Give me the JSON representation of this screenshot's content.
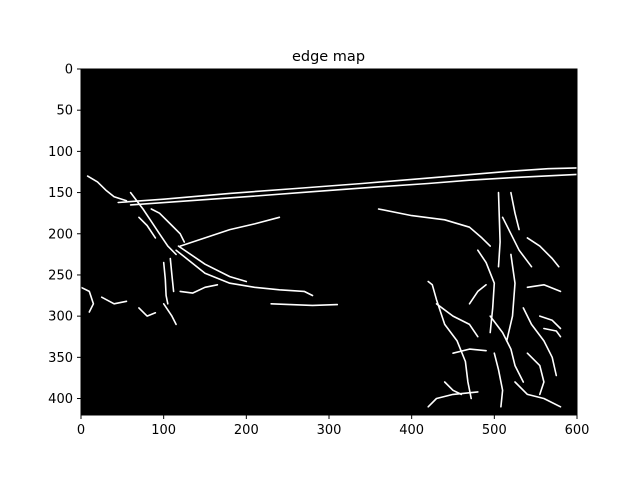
{
  "chart_data": {
    "type": "image",
    "title": "edge map",
    "xlabel": "",
    "ylabel": "",
    "xlim": [
      0,
      600
    ],
    "ylim": [
      420,
      0
    ],
    "x_ticks": [
      0,
      100,
      200,
      300,
      400,
      500,
      600
    ],
    "y_ticks": [
      0,
      50,
      100,
      150,
      200,
      250,
      300,
      350,
      400
    ],
    "grid": false,
    "legend": "none",
    "colors": {
      "background": "#000000",
      "edges": "#ffffff",
      "axes": "#000000"
    },
    "edge_paths": [
      [
        [
          45,
          162
        ],
        [
          100,
          158
        ],
        [
          180,
          151
        ],
        [
          260,
          145
        ],
        [
          340,
          139
        ],
        [
          400,
          134
        ],
        [
          460,
          129
        ],
        [
          520,
          124
        ],
        [
          565,
          121
        ],
        [
          600,
          120
        ]
      ],
      [
        [
          60,
          165
        ],
        [
          130,
          160
        ],
        [
          200,
          155
        ],
        [
          280,
          149
        ],
        [
          360,
          143
        ],
        [
          420,
          139
        ],
        [
          470,
          135
        ],
        [
          520,
          132
        ],
        [
          560,
          130
        ],
        [
          600,
          128
        ]
      ],
      [
        [
          8,
          130
        ],
        [
          20,
          137
        ],
        [
          30,
          147
        ],
        [
          40,
          155
        ],
        [
          55,
          160
        ]
      ],
      [
        [
          60,
          150
        ],
        [
          75,
          170
        ],
        [
          85,
          185
        ],
        [
          95,
          200
        ],
        [
          105,
          215
        ],
        [
          115,
          225
        ]
      ],
      [
        [
          85,
          170
        ],
        [
          95,
          175
        ],
        [
          110,
          190
        ],
        [
          120,
          200
        ],
        [
          125,
          210
        ]
      ],
      [
        [
          70,
          180
        ],
        [
          80,
          190
        ],
        [
          90,
          205
        ]
      ],
      [
        [
          115,
          220
        ],
        [
          125,
          228
        ],
        [
          150,
          248
        ],
        [
          180,
          260
        ],
        [
          210,
          265
        ],
        [
          240,
          268
        ],
        [
          270,
          270
        ],
        [
          280,
          275
        ]
      ],
      [
        [
          118,
          215
        ],
        [
          150,
          237
        ],
        [
          180,
          252
        ],
        [
          200,
          258
        ]
      ],
      [
        [
          100,
          235
        ],
        [
          102,
          255
        ],
        [
          103,
          275
        ],
        [
          105,
          285
        ]
      ],
      [
        [
          108,
          230
        ],
        [
          110,
          250
        ],
        [
          112,
          270
        ]
      ],
      [
        [
          120,
          215
        ],
        [
          150,
          205
        ],
        [
          180,
          195
        ],
        [
          210,
          188
        ],
        [
          240,
          180
        ]
      ],
      [
        [
          100,
          285
        ],
        [
          110,
          300
        ],
        [
          115,
          310
        ]
      ],
      [
        [
          120,
          270
        ],
        [
          135,
          272
        ],
        [
          150,
          265
        ],
        [
          165,
          262
        ]
      ],
      [
        [
          230,
          285
        ],
        [
          280,
          287
        ],
        [
          310,
          286
        ]
      ],
      [
        [
          0,
          265
        ],
        [
          10,
          270
        ],
        [
          15,
          285
        ],
        [
          10,
          295
        ]
      ],
      [
        [
          25,
          277
        ],
        [
          40,
          285
        ],
        [
          55,
          282
        ]
      ],
      [
        [
          70,
          290
        ],
        [
          80,
          300
        ],
        [
          90,
          296
        ]
      ],
      [
        [
          360,
          170
        ],
        [
          400,
          178
        ],
        [
          440,
          183
        ],
        [
          470,
          192
        ],
        [
          485,
          205
        ],
        [
          495,
          215
        ]
      ],
      [
        [
          420,
          258
        ],
        [
          425,
          262
        ],
        [
          430,
          280
        ],
        [
          440,
          310
        ],
        [
          455,
          330
        ],
        [
          465,
          355
        ],
        [
          468,
          380
        ],
        [
          472,
          400
        ]
      ],
      [
        [
          430,
          285
        ],
        [
          450,
          300
        ],
        [
          470,
          310
        ],
        [
          480,
          325
        ]
      ],
      [
        [
          480,
          220
        ],
        [
          490,
          235
        ],
        [
          500,
          260
        ],
        [
          498,
          290
        ],
        [
          495,
          320
        ]
      ],
      [
        [
          505,
          150
        ],
        [
          506,
          180
        ],
        [
          507,
          210
        ],
        [
          505,
          240
        ]
      ],
      [
        [
          510,
          180
        ],
        [
          520,
          200
        ],
        [
          530,
          220
        ],
        [
          545,
          240
        ]
      ],
      [
        [
          520,
          150
        ],
        [
          525,
          175
        ],
        [
          530,
          195
        ]
      ],
      [
        [
          495,
          300
        ],
        [
          510,
          320
        ],
        [
          520,
          340
        ],
        [
          525,
          360
        ],
        [
          535,
          380
        ]
      ],
      [
        [
          535,
          290
        ],
        [
          545,
          310
        ],
        [
          560,
          330
        ],
        [
          570,
          350
        ],
        [
          575,
          372
        ]
      ],
      [
        [
          500,
          345
        ],
        [
          505,
          365
        ],
        [
          510,
          390
        ],
        [
          508,
          410
        ]
      ],
      [
        [
          450,
          345
        ],
        [
          470,
          340
        ],
        [
          490,
          342
        ]
      ],
      [
        [
          540,
          345
        ],
        [
          555,
          360
        ],
        [
          560,
          380
        ],
        [
          555,
          395
        ]
      ],
      [
        [
          525,
          380
        ],
        [
          540,
          395
        ],
        [
          560,
          400
        ],
        [
          580,
          410
        ]
      ],
      [
        [
          420,
          410
        ],
        [
          430,
          400
        ],
        [
          450,
          395
        ],
        [
          480,
          392
        ]
      ],
      [
        [
          540,
          205
        ],
        [
          555,
          215
        ],
        [
          570,
          230
        ],
        [
          578,
          240
        ]
      ],
      [
        [
          540,
          265
        ],
        [
          560,
          262
        ],
        [
          580,
          270
        ]
      ],
      [
        [
          520,
          225
        ],
        [
          525,
          260
        ],
        [
          522,
          300
        ],
        [
          515,
          330
        ]
      ],
      [
        [
          555,
          300
        ],
        [
          570,
          305
        ],
        [
          580,
          315
        ]
      ],
      [
        [
          560,
          315
        ],
        [
          575,
          318
        ],
        [
          580,
          325
        ]
      ],
      [
        [
          470,
          285
        ],
        [
          480,
          270
        ],
        [
          490,
          262
        ]
      ],
      [
        [
          440,
          380
        ],
        [
          450,
          390
        ],
        [
          460,
          395
        ]
      ]
    ]
  }
}
